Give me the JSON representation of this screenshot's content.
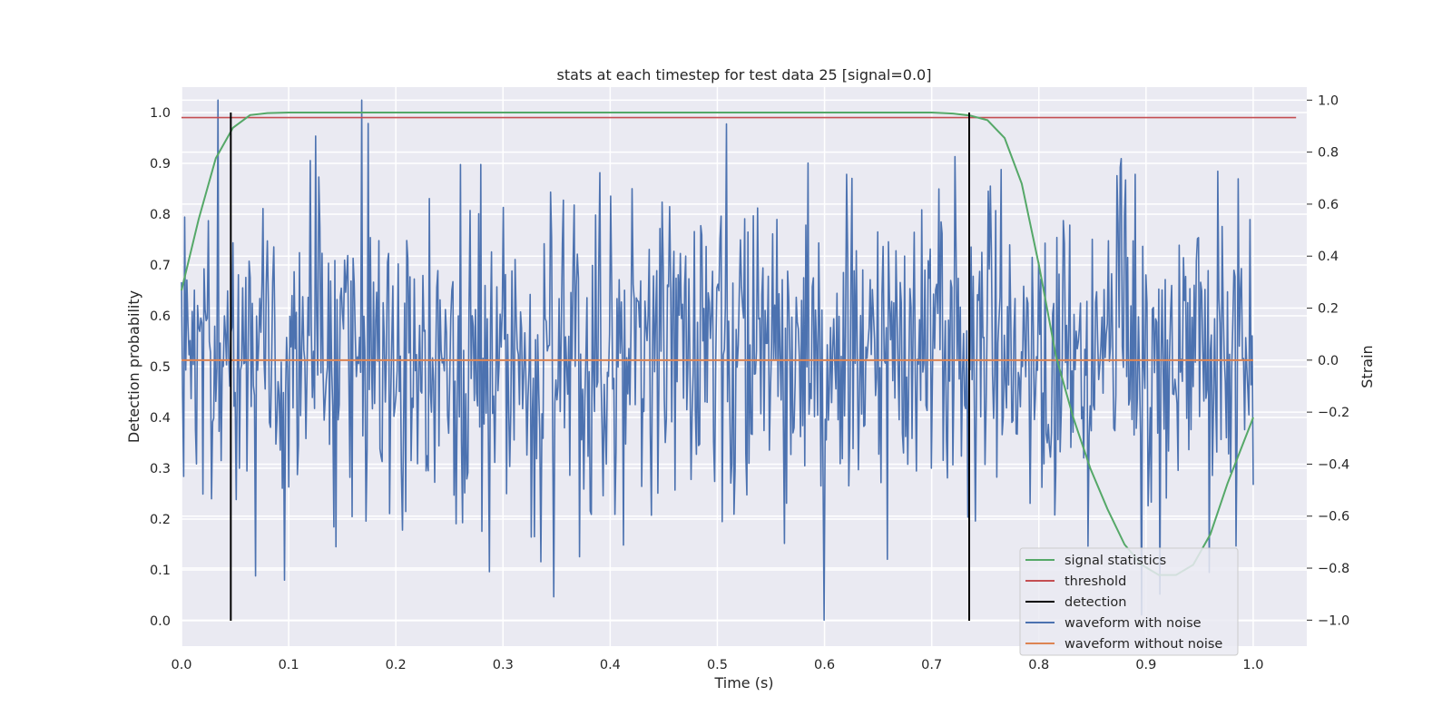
{
  "chart_data": {
    "type": "line",
    "title": "stats at each timestep for test data 25 [signal=0.0]",
    "xlabel": "Time (s)",
    "ylabel_left": "Detection probability",
    "ylabel_right": "Strain",
    "xlim": [
      0.0,
      1.05
    ],
    "ylim_left": [
      -0.05,
      1.05
    ],
    "ylim_right": [
      -1.1,
      1.05
    ],
    "x_ticks": [
      "0.0",
      "0.1",
      "0.2",
      "0.3",
      "0.4",
      "0.5",
      "0.6",
      "0.7",
      "0.8",
      "0.9",
      "1.0"
    ],
    "y_ticks_left": [
      "0.0",
      "0.1",
      "0.2",
      "0.3",
      "0.4",
      "0.5",
      "0.6",
      "0.7",
      "0.8",
      "0.9",
      "1.0"
    ],
    "y_ticks_right": [
      "−1.0",
      "−0.8",
      "−0.6",
      "−0.4",
      "−0.2",
      "0.0",
      "0.2",
      "0.4",
      "0.6",
      "0.8",
      "1.0"
    ],
    "grid": true,
    "legend_position": "lower-right",
    "series": [
      {
        "name": "signal statistics",
        "color": "#55a868",
        "axis": "left",
        "x": [
          0.0,
          0.016,
          0.032,
          0.048,
          0.064,
          0.08,
          0.1,
          0.2,
          0.3,
          0.4,
          0.5,
          0.6,
          0.7,
          0.72,
          0.736,
          0.752,
          0.768,
          0.784,
          0.8,
          0.816,
          0.832,
          0.848,
          0.864,
          0.88,
          0.896,
          0.912,
          0.928,
          0.944,
          0.96,
          0.976,
          1.0
        ],
        "values": [
          0.65,
          0.79,
          0.91,
          0.97,
          0.995,
          0.999,
          1.0,
          1.0,
          1.0,
          1.0,
          1.0,
          1.0,
          1.0,
          0.998,
          0.994,
          0.985,
          0.95,
          0.86,
          0.7,
          0.52,
          0.4,
          0.3,
          0.22,
          0.15,
          0.11,
          0.09,
          0.09,
          0.11,
          0.17,
          0.27,
          0.4
        ]
      },
      {
        "name": "threshold",
        "color": "#c44e52",
        "axis": "left",
        "value": 0.99
      },
      {
        "name": "detection",
        "color": "#000000",
        "axis": "left",
        "x": [
          0.046,
          0.735
        ],
        "range": [
          0.0,
          1.0
        ]
      },
      {
        "name": "waveform with noise",
        "color": "#4c72b0",
        "axis": "right",
        "x_range": [
          0.0,
          1.0
        ],
        "approx_std": 0.3,
        "seed": 25,
        "points": 1000,
        "peaks": [
          {
            "x": 0.0,
            "y": 0.3
          },
          {
            "x": 0.034,
            "y": 1.0
          },
          {
            "x": 0.168,
            "y": 1.0
          },
          {
            "x": 0.174,
            "y": 0.91
          },
          {
            "x": 0.069,
            "y": -0.83
          },
          {
            "x": 0.347,
            "y": -0.91
          },
          {
            "x": 0.6,
            "y": -1.0
          },
          {
            "x": 0.913,
            "y": -0.9
          },
          {
            "x": 1.0,
            "y": -0.48
          }
        ]
      },
      {
        "name": "waveform without noise",
        "color": "#dd8452",
        "axis": "right",
        "value": 0.0
      }
    ]
  }
}
